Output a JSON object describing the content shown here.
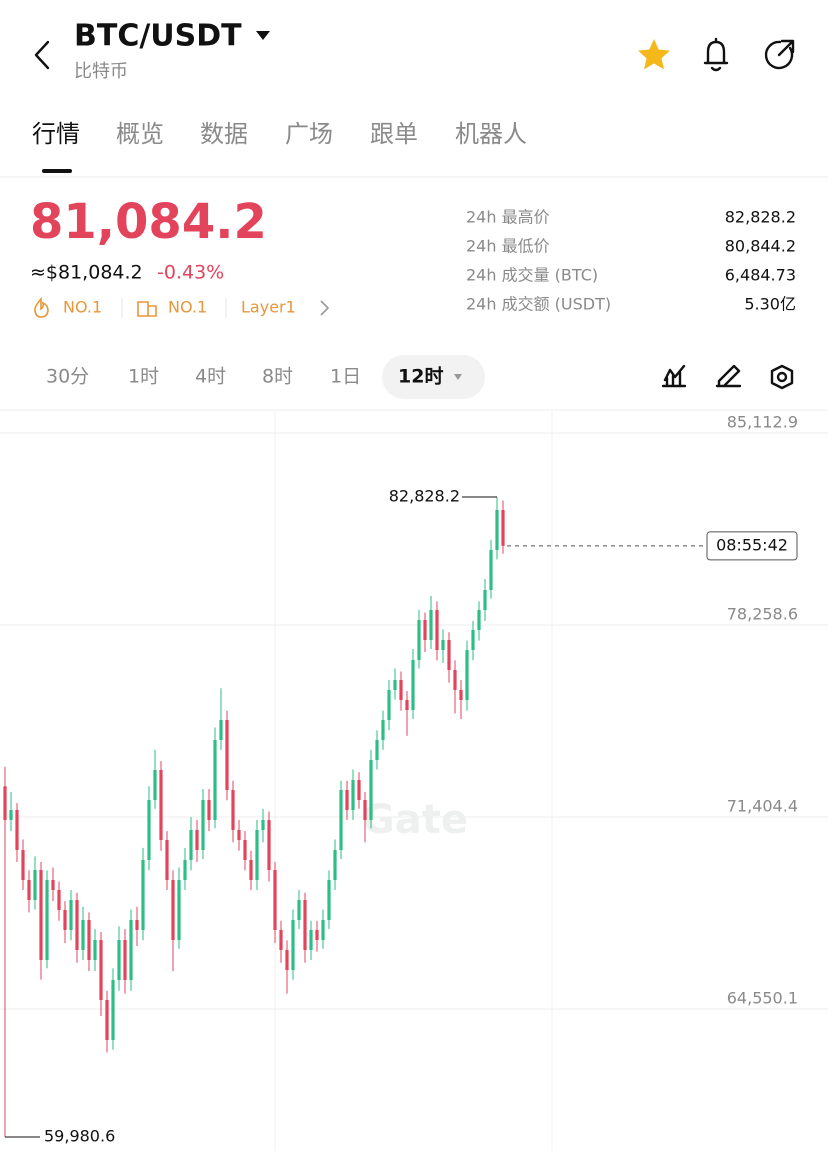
{
  "header": {
    "title": "BTC/USDT",
    "subtitle": "比特币"
  },
  "tabs": [
    "行情",
    "概览",
    "数据",
    "广场",
    "跟单",
    "机器人"
  ],
  "ticker": {
    "price": "81,084.2",
    "usd_price": "≈$81,084.2",
    "change": "-0.43%",
    "tags": [
      "NO.1",
      "NO.1",
      "Layer1"
    ],
    "stats": [
      {
        "label": "24h 最高价",
        "value": "82,828.2"
      },
      {
        "label": "24h 最低价",
        "value": "80,844.2"
      },
      {
        "label": "24h 成交量 (BTC)",
        "value": "6,484.73"
      },
      {
        "label": "24h 成交额 (USDT)",
        "value": "5.30亿"
      }
    ]
  },
  "intervals": [
    "30分",
    "1时",
    "4时",
    "8时",
    "1日",
    "12时"
  ],
  "chart_data": {
    "type": "candlestick",
    "ylim": [
      59480,
      85934
    ],
    "yticks": [
      {
        "value": 85112.9,
        "label": "85,112.9"
      },
      {
        "value": 78258.6,
        "label": "78,258.6"
      },
      {
        "value": 71404.4,
        "label": "71,404.4"
      },
      {
        "value": 64550.1,
        "label": "64,550.1"
      }
    ],
    "grid": true,
    "colors": {
      "up": "#2ebd85",
      "down": "#e2445c"
    },
    "high_label": {
      "value": 82828.2,
      "label": "82,828.2"
    },
    "low_label": {
      "value": 59980.6,
      "label": "59,980.6"
    },
    "countdown": "08:55:42",
    "watermark": "Gate",
    "candles": [
      [
        72500,
        73200,
        59980.6,
        71297
      ],
      [
        71297,
        72300,
        70900,
        71654
      ],
      [
        71654,
        71900,
        69800,
        70226
      ],
      [
        70226,
        70600,
        68800,
        69155
      ],
      [
        69155,
        69500,
        68000,
        68441
      ],
      [
        68441,
        70000,
        68100,
        69512
      ],
      [
        69512,
        69800,
        65600,
        66299
      ],
      [
        66299,
        69500,
        66000,
        69155
      ],
      [
        69155,
        69600,
        68400,
        68798
      ],
      [
        68798,
        69100,
        67700,
        68084
      ],
      [
        68084,
        68400,
        66900,
        67370
      ],
      [
        67370,
        68800,
        67000,
        68441
      ],
      [
        68441,
        68700,
        66200,
        66656
      ],
      [
        66656,
        68200,
        66300,
        67727
      ],
      [
        67727,
        68000,
        65900,
        66299
      ],
      [
        66299,
        67400,
        65900,
        67013
      ],
      [
        67013,
        67300,
        64300,
        64871
      ],
      [
        64871,
        65200,
        63000,
        63443
      ],
      [
        63443,
        66000,
        63100,
        65585
      ],
      [
        65585,
        67500,
        65200,
        67013
      ],
      [
        67013,
        67400,
        65100,
        65585
      ],
      [
        65585,
        68100,
        65200,
        67727
      ],
      [
        67727,
        68200,
        66800,
        67370
      ],
      [
        67370,
        70300,
        67000,
        69869
      ],
      [
        69869,
        72500,
        69500,
        72011
      ],
      [
        72011,
        73800,
        71700,
        73082
      ],
      [
        73082,
        73400,
        70200,
        70583
      ],
      [
        70583,
        70900,
        68800,
        69155
      ],
      [
        69155,
        69500,
        65900,
        67013
      ],
      [
        67013,
        69600,
        66700,
        69155
      ],
      [
        69155,
        70300,
        68800,
        69869
      ],
      [
        69869,
        71400,
        69500,
        70940
      ],
      [
        70940,
        71300,
        69800,
        70226
      ],
      [
        70226,
        72400,
        69900,
        72011
      ],
      [
        72011,
        72400,
        70900,
        71297
      ],
      [
        71297,
        74600,
        71000,
        74153
      ],
      [
        74153,
        76000,
        73800,
        74867
      ],
      [
        74867,
        75200,
        72000,
        72368
      ],
      [
        72368,
        72700,
        70500,
        70940
      ],
      [
        70940,
        71300,
        70200,
        70583
      ],
      [
        70583,
        70900,
        69500,
        69869
      ],
      [
        69869,
        70200,
        68800,
        69155
      ],
      [
        69155,
        71300,
        68800,
        70940
      ],
      [
        70940,
        71700,
        70500,
        71297
      ],
      [
        71297,
        71600,
        69100,
        69512
      ],
      [
        69512,
        69800,
        66900,
        67370
      ],
      [
        67370,
        67700,
        66200,
        66656
      ],
      [
        66656,
        67000,
        65100,
        65942
      ],
      [
        65942,
        68100,
        65600,
        67727
      ],
      [
        67727,
        68800,
        67400,
        68441
      ],
      [
        68441,
        68700,
        66200,
        66656
      ],
      [
        66656,
        67700,
        66300,
        67370
      ],
      [
        67370,
        67700,
        66600,
        67013
      ],
      [
        67013,
        68100,
        66700,
        67727
      ],
      [
        67727,
        69500,
        67400,
        69155
      ],
      [
        69155,
        70600,
        68800,
        70226
      ],
      [
        70226,
        72700,
        69900,
        72368
      ],
      [
        72368,
        72700,
        71300,
        71654
      ],
      [
        71654,
        73100,
        71300,
        72725
      ],
      [
        72725,
        73000,
        71700,
        72011
      ],
      [
        72011,
        72300,
        70500,
        71297
      ],
      [
        71297,
        73800,
        71000,
        73439
      ],
      [
        73439,
        74500,
        73100,
        74153
      ],
      [
        74153,
        75200,
        73800,
        74867
      ],
      [
        74867,
        76300,
        74500,
        75938
      ],
      [
        75938,
        76700,
        75600,
        76295
      ],
      [
        76295,
        76600,
        75200,
        75581
      ],
      [
        75581,
        75900,
        74300,
        75224
      ],
      [
        75224,
        77400,
        74900,
        77009
      ],
      [
        77009,
        78800,
        76700,
        78437
      ],
      [
        78437,
        78700,
        77300,
        77723
      ],
      [
        77723,
        79300,
        77400,
        78794
      ],
      [
        78794,
        79100,
        77000,
        77366
      ],
      [
        77366,
        78100,
        76900,
        77723
      ],
      [
        77723,
        78000,
        76200,
        76652
      ],
      [
        76652,
        77000,
        75100,
        75938
      ],
      [
        75938,
        76300,
        74900,
        75581
      ],
      [
        75581,
        77700,
        75200,
        77366
      ],
      [
        77366,
        78400,
        77000,
        78080
      ],
      [
        78080,
        79100,
        77700,
        78794
      ],
      [
        78794,
        79900,
        78400,
        79508
      ],
      [
        79508,
        81300,
        79200,
        80936
      ],
      [
        80936,
        82828.2,
        80600,
        82364
      ],
      [
        82364,
        82700,
        80800,
        81084.2
      ]
    ]
  }
}
